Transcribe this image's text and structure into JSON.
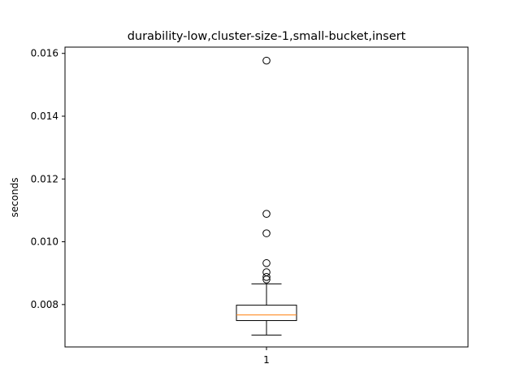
{
  "chart_data": {
    "type": "box",
    "title": "durability-low,cluster-size-1,small-bucket,insert",
    "xlabel": "",
    "ylabel": "seconds",
    "categories": [
      "1"
    ],
    "ylim": [
      0.00665,
      0.0162
    ],
    "yticks": [
      0.008,
      0.01,
      0.012,
      0.014,
      0.016
    ],
    "ytick_labels": [
      "0.008",
      "0.010",
      "0.012",
      "0.014",
      "0.016"
    ],
    "grid": false,
    "series": [
      {
        "box": {
          "whisker_low": 0.00703,
          "q1": 0.00749,
          "median": 0.00767,
          "q3": 0.00798,
          "whisker_high": 0.00866
        },
        "outliers": [
          0.01577,
          0.01089,
          0.01027,
          0.00932,
          0.00903,
          0.00888,
          0.0088
        ]
      }
    ],
    "colors": {
      "box": "#000000",
      "median": "#ff7f0e",
      "outlier": "#000000"
    }
  }
}
